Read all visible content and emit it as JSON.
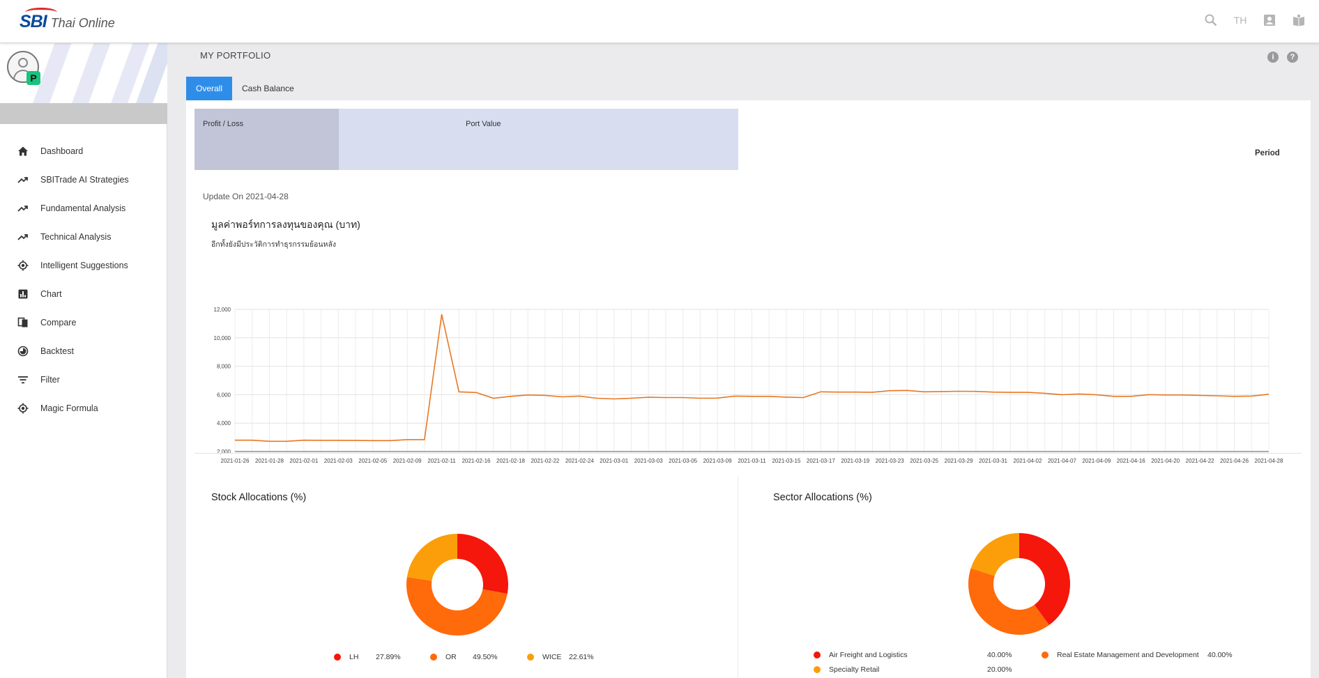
{
  "brand": {
    "logo_main": "SBI",
    "logo_sub": "Thai Online"
  },
  "topbar": {
    "lang": "TH",
    "icons": [
      "search-icon",
      "user-card-icon",
      "book-icon"
    ]
  },
  "sidebar": {
    "items": [
      {
        "label": "Dashboard",
        "icon": "home-icon"
      },
      {
        "label": "SBITrade AI Strategies",
        "icon": "trend-icon"
      },
      {
        "label": "Fundamental Analysis",
        "icon": "trend-icon"
      },
      {
        "label": "Technical Analysis",
        "icon": "trend-icon"
      },
      {
        "label": "Intelligent Suggestions",
        "icon": "target-icon"
      },
      {
        "label": "Chart",
        "icon": "bar-chart-icon"
      },
      {
        "label": "Compare",
        "icon": "compare-icon"
      },
      {
        "label": "Backtest",
        "icon": "backtest-icon"
      },
      {
        "label": "Filter",
        "icon": "filter-icon"
      },
      {
        "label": "Magic Formula",
        "icon": "target-icon"
      }
    ]
  },
  "main": {
    "title": "MY PORTFOLIO",
    "tabs": [
      {
        "label": "Overall"
      },
      {
        "label": "Cash Balance"
      }
    ],
    "summary": {
      "profit_loss_label": "Profit / Loss",
      "port_value_label": "Port Value"
    },
    "period_label": "Period",
    "update_text": "Update On 2021-04-28"
  },
  "chart_data": [
    {
      "type": "line",
      "title": "มูลค่าพอร์ทการลงทุนของคุณ (บาท)",
      "subtitle": "อีกทั้งยังมีประวัติการทำธุรกรรมย้อนหลัง",
      "x": [
        "2021-01-26",
        "2021-01-27",
        "2021-01-28",
        "2021-01-29",
        "2021-02-01",
        "2021-02-02",
        "2021-02-03",
        "2021-02-04",
        "2021-02-05",
        "2021-02-08",
        "2021-02-09",
        "2021-02-10",
        "2021-02-11",
        "2021-02-15",
        "2021-02-16",
        "2021-02-17",
        "2021-02-18",
        "2021-02-19",
        "2021-02-22",
        "2021-02-23",
        "2021-02-24",
        "2021-02-25",
        "2021-03-01",
        "2021-03-02",
        "2021-03-03",
        "2021-03-04",
        "2021-03-05",
        "2021-03-08",
        "2021-03-09",
        "2021-03-10",
        "2021-03-11",
        "2021-03-12",
        "2021-03-15",
        "2021-03-16",
        "2021-03-17",
        "2021-03-18",
        "2021-03-19",
        "2021-03-22",
        "2021-03-23",
        "2021-03-24",
        "2021-03-25",
        "2021-03-26",
        "2021-03-29",
        "2021-03-30",
        "2021-03-31",
        "2021-04-01",
        "2021-04-02",
        "2021-04-05",
        "2021-04-07",
        "2021-04-08",
        "2021-04-09",
        "2021-04-12",
        "2021-04-16",
        "2021-04-19",
        "2021-04-20",
        "2021-04-21",
        "2021-04-22",
        "2021-04-23",
        "2021-04-26",
        "2021-04-27",
        "2021-04-28"
      ],
      "x_tick_labels": [
        "2021-01-26",
        "2021-01-28",
        "2021-02-01",
        "2021-02-03",
        "2021-02-05",
        "2021-02-09",
        "2021-02-11",
        "2021-02-16",
        "2021-02-18",
        "2021-02-22",
        "2021-02-24",
        "2021-03-01",
        "2021-03-03",
        "2021-03-05",
        "2021-03-09",
        "2021-03-11",
        "2021-03-15",
        "2021-03-17",
        "2021-03-19",
        "2021-03-23",
        "2021-03-25",
        "2021-03-29",
        "2021-03-31",
        "2021-04-02",
        "2021-04-07",
        "2021-04-09",
        "2021-04-16",
        "2021-04-20",
        "2021-04-22",
        "2021-04-26",
        "2021-04-28"
      ],
      "values": [
        2800,
        2800,
        2720,
        2720,
        2800,
        2790,
        2790,
        2780,
        2770,
        2770,
        2840,
        2840,
        11650,
        6200,
        6150,
        5750,
        5880,
        5980,
        5950,
        5850,
        5900,
        5750,
        5700,
        5750,
        5820,
        5800,
        5800,
        5750,
        5760,
        5900,
        5880,
        5880,
        5830,
        5800,
        6200,
        6180,
        6180,
        6170,
        6280,
        6300,
        6200,
        6220,
        6240,
        6230,
        6180,
        6160,
        6160,
        6100,
        6000,
        6050,
        5990,
        5880,
        5880,
        6000,
        5980,
        5980,
        5950,
        5920,
        5880,
        5900,
        6030
      ],
      "ylim": [
        2000,
        12000
      ],
      "y_ticks": [
        "2,000",
        "4,000",
        "6,000",
        "8,000",
        "10,000",
        "12,000"
      ],
      "grid": true,
      "color": "#e87722"
    },
    {
      "type": "pie",
      "title": "Stock Allocations (%)",
      "slices": [
        {
          "label": "LH",
          "value": 27.89,
          "display": "27.89%",
          "color": "#f5160c"
        },
        {
          "label": "OR",
          "value": 49.5,
          "display": "49.50%",
          "color": "#ff6a0a"
        },
        {
          "label": "WICE",
          "value": 22.61,
          "display": "22.61%",
          "color": "#fb9e0a"
        }
      ]
    },
    {
      "type": "pie",
      "title": "Sector Allocations (%)",
      "slices": [
        {
          "label": "Air Freight and Logistics",
          "value": 40.0,
          "display": "40.00%",
          "color": "#f5160c"
        },
        {
          "label": "Real Estate Management and Development",
          "value": 40.0,
          "display": "40.00%",
          "color": "#ff6a0a"
        },
        {
          "label": "Specialty Retail",
          "value": 20.0,
          "display": "20.00%",
          "color": "#fb9e0a"
        }
      ]
    }
  ]
}
